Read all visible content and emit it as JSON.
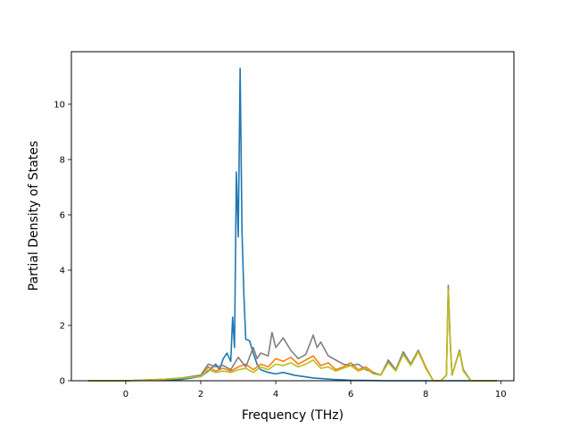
{
  "chart_data": {
    "type": "line",
    "xlabel": "Frequency (THz)",
    "ylabel": "Partial Density of States",
    "xlim": [
      -1.45,
      10.35
    ],
    "ylim": [
      0,
      11.9
    ],
    "xticks": [
      0,
      2,
      4,
      6,
      8,
      10
    ],
    "yticks": [
      0,
      2,
      4,
      6,
      8,
      10
    ],
    "grid": false,
    "series": [
      {
        "color": "#1f77b4",
        "x": [
          -1.0,
          0.0,
          1.0,
          1.5,
          2.0,
          2.2,
          2.4,
          2.5,
          2.6,
          2.7,
          2.8,
          2.85,
          2.9,
          2.95,
          3.0,
          3.05,
          3.1,
          3.15,
          3.2,
          3.3,
          3.4,
          3.5,
          3.6,
          3.8,
          4.0,
          4.2,
          4.5,
          5.0,
          5.5,
          6.0,
          6.5,
          7.0,
          7.5,
          8.0,
          8.5,
          9.0,
          9.9
        ],
        "values": [
          0,
          0,
          0.02,
          0.05,
          0.15,
          0.35,
          0.6,
          0.4,
          0.8,
          1.0,
          0.7,
          2.3,
          1.2,
          7.55,
          5.2,
          11.3,
          5.4,
          3.1,
          1.5,
          1.45,
          1.0,
          0.6,
          0.4,
          0.3,
          0.25,
          0.3,
          0.2,
          0.1,
          0.05,
          0.02,
          0.01,
          0,
          0,
          0,
          0,
          0,
          0
        ]
      },
      {
        "color": "#ff7f0e",
        "x": [
          -1.0,
          0.0,
          1.0,
          1.5,
          2.0,
          2.2,
          2.4,
          2.6,
          2.8,
          3.0,
          3.2,
          3.4,
          3.6,
          3.8,
          4.0,
          4.2,
          4.4,
          4.6,
          4.8,
          5.0,
          5.2,
          5.4,
          5.6,
          5.8,
          6.0,
          6.2,
          6.4,
          6.6,
          6.8,
          7.0,
          7.2,
          7.4,
          7.6,
          7.8,
          8.0,
          8.2,
          8.4,
          8.55,
          8.6,
          8.65,
          8.7,
          8.9,
          9.0,
          9.2,
          9.9
        ],
        "values": [
          0,
          0,
          0.05,
          0.1,
          0.2,
          0.5,
          0.35,
          0.45,
          0.35,
          0.5,
          0.6,
          0.4,
          0.6,
          0.5,
          0.8,
          0.7,
          0.85,
          0.6,
          0.75,
          0.9,
          0.55,
          0.65,
          0.4,
          0.5,
          0.65,
          0.4,
          0.5,
          0.3,
          0.2,
          0.7,
          0.4,
          1.0,
          0.6,
          1.1,
          0.5,
          0.0,
          0.0,
          0.2,
          3.3,
          1.5,
          0.2,
          1.1,
          0.4,
          0.0,
          0
        ]
      },
      {
        "color": "#7f7f7f",
        "x": [
          -1.0,
          0.0,
          1.0,
          1.5,
          2.0,
          2.2,
          2.4,
          2.6,
          2.8,
          3.0,
          3.2,
          3.4,
          3.5,
          3.6,
          3.8,
          3.9,
          4.0,
          4.2,
          4.4,
          4.6,
          4.8,
          5.0,
          5.1,
          5.2,
          5.4,
          5.6,
          5.8,
          6.0,
          6.2,
          6.4,
          6.6,
          6.8,
          7.0,
          7.2,
          7.4,
          7.6,
          7.8,
          8.0,
          8.2,
          8.4,
          8.55,
          8.6,
          8.65,
          8.7,
          8.9,
          9.0,
          9.2,
          9.9
        ],
        "values": [
          0,
          0,
          0.05,
          0.1,
          0.2,
          0.6,
          0.5,
          0.55,
          0.4,
          0.85,
          0.5,
          1.2,
          0.8,
          1.0,
          0.9,
          1.75,
          1.2,
          1.55,
          1.1,
          0.8,
          0.95,
          1.65,
          1.2,
          1.4,
          0.9,
          0.75,
          0.6,
          0.55,
          0.6,
          0.4,
          0.3,
          0.2,
          0.75,
          0.4,
          1.05,
          0.6,
          1.1,
          0.45,
          0.0,
          0.0,
          0.2,
          3.45,
          1.5,
          0.2,
          1.1,
          0.4,
          0.0,
          0
        ]
      },
      {
        "color": "#bcbd22",
        "x": [
          -1.0,
          0.0,
          1.0,
          1.5,
          2.0,
          2.2,
          2.4,
          2.6,
          2.8,
          3.0,
          3.2,
          3.4,
          3.6,
          3.8,
          4.0,
          4.2,
          4.4,
          4.6,
          4.8,
          5.0,
          5.2,
          5.4,
          5.6,
          5.8,
          6.0,
          6.2,
          6.4,
          6.6,
          6.8,
          7.0,
          7.2,
          7.4,
          7.6,
          7.8,
          8.0,
          8.2,
          8.4,
          8.55,
          8.6,
          8.65,
          8.7,
          8.9,
          9.0,
          9.2,
          9.9
        ],
        "values": [
          0,
          0,
          0.05,
          0.1,
          0.15,
          0.4,
          0.3,
          0.35,
          0.3,
          0.4,
          0.45,
          0.3,
          0.5,
          0.4,
          0.6,
          0.55,
          0.65,
          0.5,
          0.6,
          0.75,
          0.45,
          0.5,
          0.35,
          0.45,
          0.55,
          0.35,
          0.45,
          0.25,
          0.2,
          0.65,
          0.35,
          0.95,
          0.55,
          1.05,
          0.45,
          0.0,
          0.0,
          0.2,
          3.3,
          1.4,
          0.2,
          1.05,
          0.35,
          0.0,
          0
        ]
      }
    ]
  }
}
